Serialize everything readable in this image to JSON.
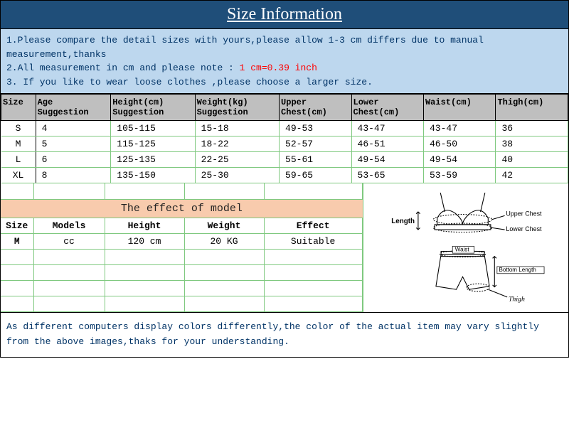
{
  "title": "Size Information",
  "notes": {
    "line1": "1.Please compare the detail sizes with yours,please allow 1-3 cm differs due to manual measurement,thanks",
    "line2a": "2.All measurement in cm and please note : ",
    "line2b": "1 cm=0.39 inch",
    "line3": "3. If you like to wear loose clothes ,please choose a larger size."
  },
  "size_table": {
    "headers": [
      "Size",
      "Age Suggestion",
      "Height(cm) Suggestion",
      "Weight(kg) Suggestion",
      "Upper Chest(cm)",
      "Lower Chest(cm)",
      "Waist(cm)",
      "Thigh(cm)"
    ],
    "rows": [
      [
        "S",
        "4",
        "105-115",
        "15-18",
        "49-53",
        "43-47",
        "43-47",
        "36"
      ],
      [
        "M",
        "5",
        "115-125",
        "18-22",
        "52-57",
        "46-51",
        "46-50",
        "38"
      ],
      [
        "L",
        "6",
        "125-135",
        "22-25",
        "55-61",
        "49-54",
        "49-54",
        "40"
      ],
      [
        "XL",
        "8",
        "135-150",
        "25-30",
        "59-65",
        "53-65",
        "53-59",
        "42"
      ]
    ],
    "col_widths": [
      "46px",
      "100px",
      "112px",
      "112px",
      "96px",
      "96px",
      "96px",
      "96px"
    ],
    "header_bg": "#bfbfbf",
    "grid_color": "#7fc97f"
  },
  "model": {
    "title": "The effect of model",
    "title_bg": "#f8cbad",
    "headers": [
      "Size",
      "Models",
      "Height",
      "Weight",
      "Effect"
    ],
    "row": [
      "M",
      "cc",
      "120 cm",
      "20 KG",
      "Suitable"
    ]
  },
  "diagram": {
    "labels": {
      "length": "Length",
      "upper": "Upper Chest",
      "lower": "Lower Chest",
      "waist": "Waist",
      "bottom": "Bottom Length",
      "thigh": "Thigh"
    }
  },
  "footer": "As different computers display colors differently,the color of the actual item may vary slightly from the above images,thaks for your understanding.",
  "colors": {
    "title_bg": "#1f4e79",
    "notes_bg": "#bdd7ee",
    "text_blue": "#003366",
    "red": "#ff0000"
  }
}
